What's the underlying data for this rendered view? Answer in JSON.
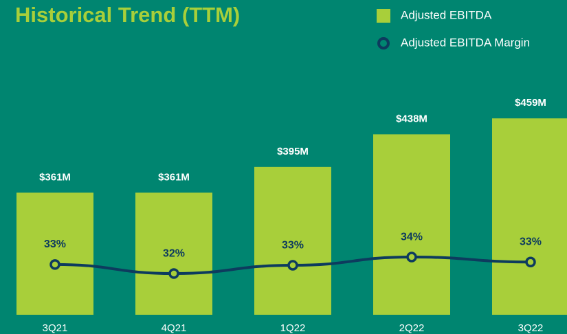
{
  "chart_data": {
    "type": "bar_line",
    "title": "Historical Trend (TTM)",
    "categories": [
      "3Q21",
      "4Q21",
      "1Q22",
      "2Q22",
      "3Q22"
    ],
    "series": [
      {
        "name": "Adjusted EBITDA",
        "type": "bar",
        "color": "#a8cf3a",
        "values": [
          361,
          361,
          395,
          438,
          459
        ],
        "value_labels": [
          "$361M",
          "$361M",
          "$395M",
          "$438M",
          "$459M"
        ]
      },
      {
        "name": "Adjusted EBITDA Margin",
        "type": "line",
        "axis": "y2",
        "color": "#0d3b5e",
        "values": [
          33.1,
          32.0,
          33.0,
          34.0,
          33.4
        ],
        "value_labels": [
          "33%",
          "32%",
          "33%",
          "34%",
          "33%"
        ]
      }
    ],
    "ylim": [
      200,
      500
    ],
    "y2lim": [
      27,
      54.6
    ]
  }
}
